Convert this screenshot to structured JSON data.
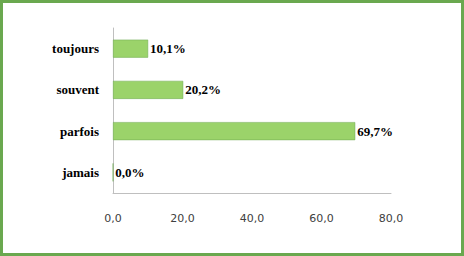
{
  "chart_data": {
    "type": "bar",
    "orientation": "horizontal",
    "categories": [
      "toujours",
      "souvent",
      "parfois",
      "jamais"
    ],
    "values": [
      10.1,
      20.2,
      69.7,
      0.0
    ],
    "value_labels": [
      "10,1%",
      "20,2%",
      "69,7%",
      "0,0%"
    ],
    "color": "#9bd36a",
    "xlim": [
      0,
      80
    ],
    "xticks": [
      {
        "value": 0,
        "label": "0,0"
      },
      {
        "value": 20,
        "label": "20,0"
      },
      {
        "value": 40,
        "label": "40,0"
      },
      {
        "value": 60,
        "label": "60,0"
      },
      {
        "value": 80,
        "label": "80,0"
      }
    ],
    "grid": false,
    "data_labels": true
  }
}
